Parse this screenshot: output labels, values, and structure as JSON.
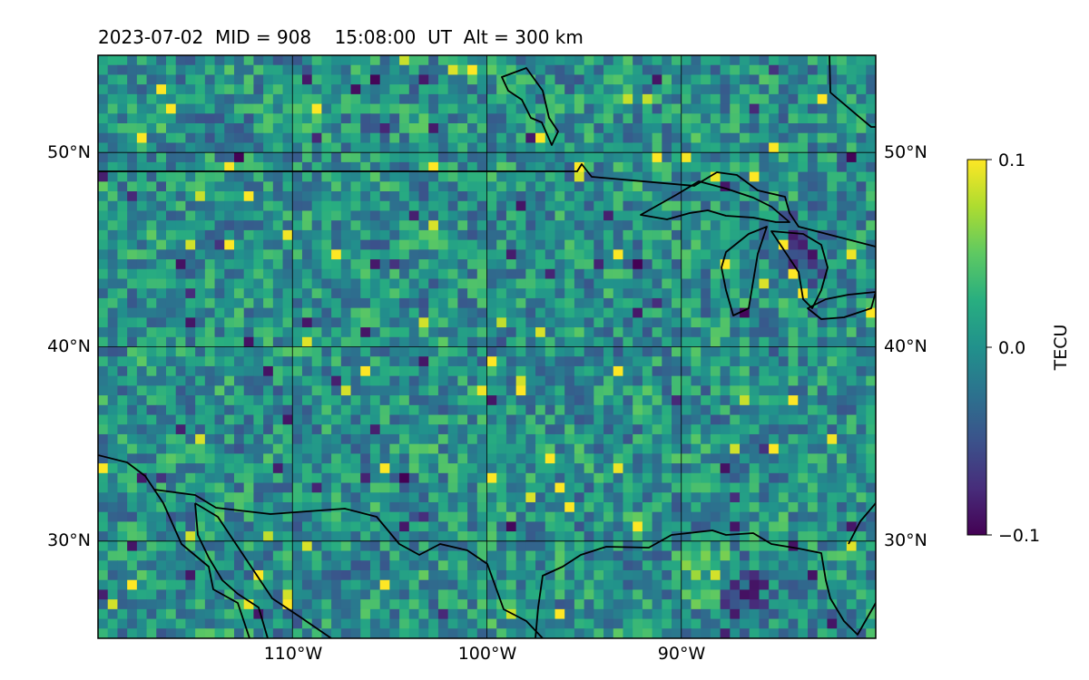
{
  "chart_data": {
    "type": "heatmap",
    "title": "2023-07-02  MID = 908    15:08:00  UT  Alt = 300 km",
    "map": {
      "lon_range": [
        -120,
        -80
      ],
      "lat_range": [
        25,
        55
      ],
      "lon_ticks": [
        -110,
        -100,
        -90
      ],
      "lat_ticks": [
        30,
        40,
        50
      ],
      "lon_tick_labels": [
        "110°W",
        "100°W",
        "90°W"
      ],
      "lat_tick_labels": [
        "30°N",
        "40°N",
        "50°N"
      ],
      "grid": true
    },
    "colorbar": {
      "label": "TECU",
      "colormap": "viridis",
      "vmin": -0.1,
      "vmax": 0.1,
      "ticks": [
        0.1,
        0.0,
        -0.1
      ],
      "tick_labels": [
        "0.1",
        "0.0",
        "−0.1"
      ]
    },
    "features": [
      {
        "name": "noisy TEC field near 0.0 TECU over the continental US",
        "value_range": [
          -0.05,
          0.05
        ]
      },
      {
        "name": "positive band along the Gulf coast",
        "lon": -88,
        "lat": 28,
        "value": 0.1
      },
      {
        "name": "negative patch south of the Gulf coast",
        "lon": -87,
        "lat": 27.5,
        "value": -0.1
      },
      {
        "name": "negative spots near Lake Michigan",
        "lon": -84,
        "lat": 45,
        "value": -0.07
      }
    ]
  },
  "colors": {
    "background": "#ffffff",
    "coastline": "#000000",
    "grid": "#000000"
  }
}
